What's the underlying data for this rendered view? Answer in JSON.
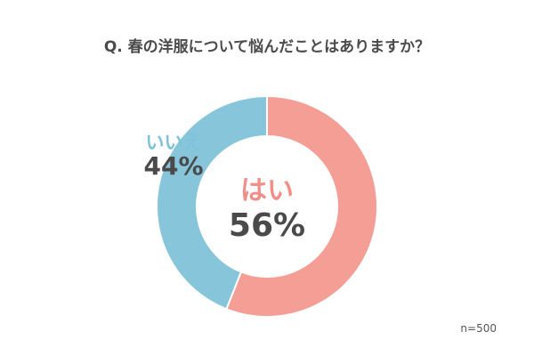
{
  "title": "Q. 春の洋服について悩んだことはありますか？",
  "note": "n=500",
  "colors": {
    "yes": "#f59e95",
    "no": "#86c5da"
  },
  "chart_data": {
    "type": "pie",
    "title": "Q. 春の洋服について悩んだことはありますか？",
    "categories": [
      "はい",
      "いいえ"
    ],
    "values": [
      56,
      44
    ],
    "labels": [
      "はい",
      "いいえ"
    ],
    "value_labels": [
      "56%",
      "44%"
    ],
    "legend": "none"
  }
}
